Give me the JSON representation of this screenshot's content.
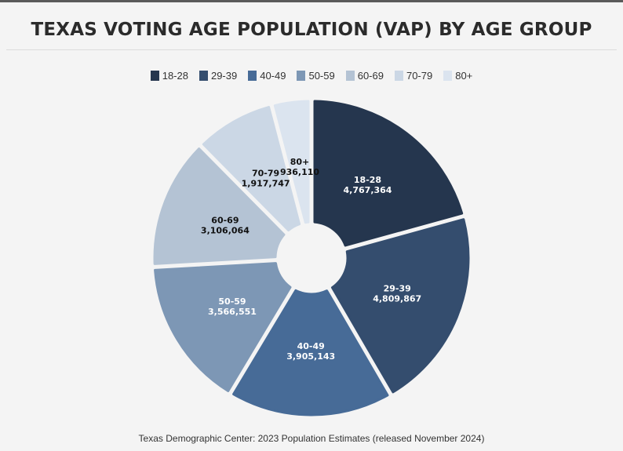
{
  "chart_data": {
    "type": "pie",
    "title": "TEXAS VOTING AGE POPULATION (VAP) BY AGE GROUP",
    "source": "Texas Demographic Center: 2023 Population Estimates (released November 2024)",
    "legend_position": "top",
    "categories": [
      "18-28",
      "29-39",
      "40-49",
      "50-59",
      "60-69",
      "70-79",
      "80+"
    ],
    "values": [
      4767364,
      4809867,
      3905143,
      3566551,
      3106064,
      1917747,
      936110
    ],
    "value_labels": [
      "4,767,364",
      "4,809,867",
      "3,905,143",
      "3,566,551",
      "3,106,064",
      "1,917,747",
      "936,110"
    ],
    "colors": [
      "#25364e",
      "#344d6e",
      "#476b97",
      "#7d97b5",
      "#b4c3d4",
      "#cbd7e5",
      "#dbe4ef"
    ],
    "label_colors": [
      "#ffffff",
      "#ffffff",
      "#ffffff",
      "#ffffff",
      "#111111",
      "#111111",
      "#111111"
    ]
  }
}
